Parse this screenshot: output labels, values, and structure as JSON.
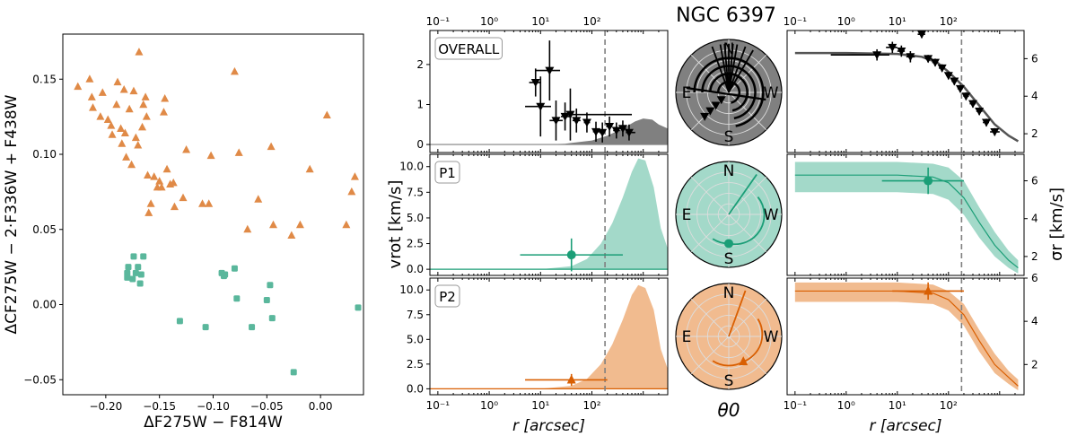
{
  "title": "NGC 6397",
  "colors": {
    "p1": "#1b9e77",
    "p2": "#d95f02",
    "p1_fill": "#a3d9c9",
    "p2_fill": "#f1bb8f",
    "overall": "#000000",
    "overall_fill": "#808080",
    "p1_marker": "#5ab79c",
    "p2_marker": "#e08a47",
    "vline": "#808080"
  },
  "chart_data": [
    {
      "id": "chromosome-map",
      "type": "scatter",
      "xlabel": "ΔF275W − F814W",
      "ylabel": "ΔCF275W − 2·F336W + F438W",
      "xlim": [
        -0.24,
        0.04
      ],
      "ylim": [
        -0.06,
        0.18
      ],
      "xticks": [
        -0.2,
        -0.15,
        -0.1,
        -0.05,
        0.0
      ],
      "xticklabels": [
        "−0.20",
        "−0.15",
        "−0.10",
        "−0.05",
        "0.00"
      ],
      "yticks": [
        -0.05,
        0.0,
        0.05,
        0.1,
        0.15
      ],
      "yticklabels": [
        "−0.05",
        "0.00",
        "0.05",
        "0.10",
        "0.15"
      ],
      "series": [
        {
          "name": "P2",
          "marker": "triangle",
          "points": [
            [
              -0.226,
              0.145
            ],
            [
              -0.215,
              0.15
            ],
            [
              -0.213,
              0.138
            ],
            [
              -0.212,
              0.131
            ],
            [
              -0.205,
              0.125
            ],
            [
              -0.203,
              0.141
            ],
            [
              -0.198,
              0.123
            ],
            [
              -0.195,
              0.119
            ],
            [
              -0.194,
              0.113
            ],
            [
              -0.19,
              0.133
            ],
            [
              -0.189,
              0.148
            ],
            [
              -0.186,
              0.117
            ],
            [
              -0.185,
              0.107
            ],
            [
              -0.183,
              0.143
            ],
            [
              -0.182,
              0.114
            ],
            [
              -0.181,
              0.098
            ],
            [
              -0.178,
              0.13
            ],
            [
              -0.176,
              0.093
            ],
            [
              -0.174,
              0.142
            ],
            [
              -0.172,
              0.111
            ],
            [
              -0.17,
              0.106
            ],
            [
              -0.169,
              0.168
            ],
            [
              -0.166,
              0.118
            ],
            [
              -0.165,
              0.133
            ],
            [
              -0.163,
              0.138
            ],
            [
              -0.162,
              0.125
            ],
            [
              -0.161,
              0.086
            ],
            [
              -0.16,
              0.061
            ],
            [
              -0.158,
              0.067
            ],
            [
              -0.155,
              0.085
            ],
            [
              -0.152,
              0.078
            ],
            [
              -0.15,
              0.082
            ],
            [
              -0.148,
              0.078
            ],
            [
              -0.146,
              0.128
            ],
            [
              -0.145,
              0.137
            ],
            [
              -0.143,
              0.09
            ],
            [
              -0.14,
              0.08
            ],
            [
              -0.137,
              0.081
            ],
            [
              -0.136,
              0.065
            ],
            [
              -0.128,
              0.071
            ],
            [
              -0.125,
              0.103
            ],
            [
              -0.11,
              0.067
            ],
            [
              -0.104,
              0.067
            ],
            [
              -0.102,
              0.099
            ],
            [
              -0.08,
              0.155
            ],
            [
              -0.076,
              0.101
            ],
            [
              -0.068,
              0.05
            ],
            [
              -0.058,
              0.07
            ],
            [
              -0.046,
              0.105
            ],
            [
              -0.044,
              0.053
            ],
            [
              -0.027,
              0.046
            ],
            [
              -0.019,
              0.053
            ],
            [
              -0.01,
              0.09
            ],
            [
              0.006,
              0.126
            ],
            [
              0.024,
              0.053
            ],
            [
              0.029,
              0.075
            ],
            [
              0.032,
              0.085
            ]
          ]
        },
        {
          "name": "P1",
          "marker": "square",
          "points": [
            [
              -0.18,
              0.021
            ],
            [
              -0.18,
              0.018
            ],
            [
              -0.179,
              0.025
            ],
            [
              -0.175,
              0.017
            ],
            [
              -0.174,
              0.032
            ],
            [
              -0.172,
              0.021
            ],
            [
              -0.17,
              0.025
            ],
            [
              -0.168,
              0.014
            ],
            [
              -0.167,
              0.02
            ],
            [
              -0.165,
              0.032
            ],
            [
              -0.131,
              -0.011
            ],
            [
              -0.107,
              -0.015
            ],
            [
              -0.092,
              0.021
            ],
            [
              -0.09,
              0.019
            ],
            [
              -0.089,
              0.02
            ],
            [
              -0.08,
              0.024
            ],
            [
              -0.078,
              0.004
            ],
            [
              -0.064,
              -0.015
            ],
            [
              -0.05,
              0.003
            ],
            [
              -0.047,
              0.013
            ],
            [
              -0.045,
              -0.009
            ],
            [
              -0.025,
              -0.045
            ],
            [
              0.035,
              -0.002
            ]
          ]
        }
      ]
    },
    {
      "id": "vrot-overall",
      "type": "line",
      "label": "OVERALL",
      "xscale": "log",
      "xlim": [
        0.07,
        3000
      ],
      "ylim": [
        -0.2,
        2.85
      ],
      "yticks": [
        0,
        1,
        2
      ],
      "yticklabels": [
        "0",
        "1",
        "2"
      ],
      "xticklabels_top": [
        "10⁻¹",
        "10⁰",
        "10¹",
        "10²"
      ],
      "vline": 180,
      "model_curve": {
        "x": [
          0.07,
          10,
          30,
          100,
          200,
          400,
          700,
          1000,
          1500,
          2000,
          3000
        ],
        "y": [
          0.0,
          0.0,
          0.02,
          0.1,
          0.22,
          0.4,
          0.58,
          0.65,
          0.62,
          0.5,
          0.4
        ]
      },
      "points": [
        {
          "x": 38,
          "y": 0.75,
          "xerr": [
            35,
            600
          ],
          "yerr": 0.65
        },
        {
          "x": 15,
          "y": 1.85,
          "xerr": [
            8,
            24
          ],
          "yerr": 0.75
        },
        {
          "x": 10,
          "y": 0.95,
          "xerr": [
            5,
            16
          ],
          "yerr": 0.75
        },
        {
          "x": 20,
          "y": 0.6,
          "xerr": [
            15,
            27
          ],
          "yerr": 0.5
        },
        {
          "x": 8,
          "y": 1.55,
          "xerr": [
            6,
            10
          ],
          "yerr": 0.35
        },
        {
          "x": 30,
          "y": 0.7,
          "xerr": [
            25,
            40
          ],
          "yerr": 0.35
        },
        {
          "x": 50,
          "y": 0.6,
          "xerr": [
            42,
            60
          ],
          "yerr": 0.3
        },
        {
          "x": 80,
          "y": 0.55,
          "xerr": [
            70,
            92
          ],
          "yerr": 0.25
        },
        {
          "x": 120,
          "y": 0.32,
          "xerr": [
            105,
            140
          ],
          "yerr": 0.25
        },
        {
          "x": 160,
          "y": 0.3,
          "xerr": [
            140,
            180
          ],
          "yerr": 0.25
        },
        {
          "x": 220,
          "y": 0.45,
          "xerr": [
            190,
            250
          ],
          "yerr": 0.25
        },
        {
          "x": 300,
          "y": 0.35,
          "xerr": [
            260,
            350
          ],
          "yerr": 0.2
        },
        {
          "x": 400,
          "y": 0.4,
          "xerr": [
            350,
            460
          ],
          "yerr": 0.2
        },
        {
          "x": 530,
          "y": 0.3,
          "xerr": [
            460,
            700
          ],
          "yerr": 0.2
        }
      ]
    },
    {
      "id": "vrot-p1",
      "type": "line",
      "label": "P1",
      "xscale": "log",
      "xlim": [
        0.07,
        3000
      ],
      "ylim": [
        -0.6,
        11.2
      ],
      "yticks": [
        0,
        2.5,
        5,
        7.5,
        10
      ],
      "yticklabels": [
        "0.0",
        "2.5",
        "5.0",
        "7.5",
        "10.0"
      ],
      "vline": 180,
      "model_curve": {
        "x": [
          0.07,
          10,
          40,
          80,
          150,
          250,
          400,
          600,
          800,
          1100,
          1600,
          2200,
          3000
        ],
        "y": [
          0.0,
          0.0,
          0.3,
          1.0,
          2.5,
          4.5,
          7.0,
          9.5,
          10.8,
          10.6,
          8.0,
          4.0,
          2.0
        ]
      },
      "points": [
        {
          "x": 40,
          "y": 1.4,
          "xerr": [
            4,
            400
          ],
          "yerr": 1.6
        }
      ]
    },
    {
      "id": "vrot-p2",
      "type": "line",
      "label": "P2",
      "xscale": "log",
      "xlim": [
        0.07,
        3000
      ],
      "ylim": [
        -0.6,
        11.2
      ],
      "yticks": [
        0,
        2.5,
        5,
        7.5,
        10
      ],
      "yticklabels": [
        "0.0",
        "2.5",
        "5.0",
        "7.5",
        "10.0"
      ],
      "xticklabels": [
        "10⁻¹",
        "10⁰",
        "10¹",
        "10²"
      ],
      "xlabel": "r [arcsec]",
      "vline": 180,
      "model_curve": {
        "x": [
          0.07,
          10,
          40,
          80,
          150,
          250,
          400,
          600,
          800,
          1100,
          1600,
          2200,
          3000
        ],
        "y": [
          0.0,
          0.0,
          0.3,
          1.0,
          2.5,
          4.5,
          7.0,
          9.5,
          10.5,
          10.2,
          8.0,
          4.0,
          2.0
        ]
      },
      "points": [
        {
          "x": 40,
          "y": 0.9,
          "xerr": [
            5,
            200
          ],
          "yerr": 0.6
        }
      ]
    },
    {
      "id": "polar-overall",
      "type": "polar",
      "label": "OVERALL",
      "compass": [
        "N",
        "E",
        "W",
        "S"
      ],
      "theta0_deg": [
        180,
        210,
        160,
        200,
        170,
        190,
        175,
        185
      ],
      "rings": [
        0.18,
        0.35,
        0.5,
        0.65,
        0.8
      ]
    },
    {
      "id": "polar-p1",
      "type": "polar",
      "label": "P1",
      "compass": [
        "N",
        "E",
        "W",
        "S"
      ],
      "theta0_deg": [
        -145
      ],
      "arc_deg": [
        -10,
        -90
      ],
      "marker_radius": 0.55
    },
    {
      "id": "polar-p2",
      "type": "polar",
      "label": "P2",
      "compass": [
        "N",
        "E",
        "W",
        "S"
      ],
      "theta0_deg": [
        -160
      ],
      "arc_deg": [
        -10,
        -60
      ],
      "marker_radius": 0.55
    },
    {
      "id": "sigma-overall",
      "type": "line",
      "xscale": "log",
      "xlim": [
        0.07,
        3000
      ],
      "ylim": [
        1.0,
        7.5
      ],
      "yticks": [
        2,
        4,
        6
      ],
      "yticklabels": [
        "2",
        "4",
        "6"
      ],
      "xticklabels_top": [
        "10⁻¹",
        "10⁰",
        "10¹",
        "10²"
      ],
      "vline": 180,
      "model_curve": {
        "x": [
          0.1,
          1,
          10,
          30,
          60,
          100,
          200,
          400,
          800,
          1500,
          2300
        ],
        "y": [
          6.3,
          6.3,
          6.25,
          6.1,
          5.8,
          5.3,
          4.5,
          3.5,
          2.5,
          1.9,
          1.6
        ]
      },
      "points": [
        {
          "x": 4,
          "y": 6.2,
          "xerr": [
            0.5,
            7
          ],
          "yerr": 0.3
        },
        {
          "x": 8,
          "y": 6.6,
          "xerr": [
            6,
            10
          ],
          "yerr": 0.3
        },
        {
          "x": 12,
          "y": 6.4,
          "xerr": [
            10,
            14
          ],
          "yerr": 0.3
        },
        {
          "x": 18,
          "y": 6.1,
          "xerr": [
            15,
            22
          ],
          "yerr": 0.3
        },
        {
          "x": 30,
          "y": 7.3,
          "xerr": [
            25,
            35
          ],
          "yerr": 0.2
        },
        {
          "x": 40,
          "y": 6.0,
          "xerr": [
            35,
            48
          ],
          "yerr": 0.2
        },
        {
          "x": 55,
          "y": 5.8,
          "xerr": [
            48,
            62
          ],
          "yerr": 0.2
        },
        {
          "x": 75,
          "y": 5.5,
          "xerr": [
            65,
            85
          ],
          "yerr": 0.2
        },
        {
          "x": 100,
          "y": 5.1,
          "xerr": [
            90,
            115
          ],
          "yerr": 0.2
        },
        {
          "x": 130,
          "y": 4.8,
          "xerr": [
            115,
            145
          ],
          "yerr": 0.2
        },
        {
          "x": 170,
          "y": 4.4,
          "xerr": [
            150,
            190
          ],
          "yerr": 0.2
        },
        {
          "x": 220,
          "y": 4.0,
          "xerr": [
            195,
            250
          ],
          "yerr": 0.2
        },
        {
          "x": 300,
          "y": 3.6,
          "xerr": [
            260,
            340
          ],
          "yerr": 0.2
        },
        {
          "x": 400,
          "y": 3.2,
          "xerr": [
            350,
            460
          ],
          "yerr": 0.2
        },
        {
          "x": 550,
          "y": 2.6,
          "xerr": [
            470,
            620
          ],
          "yerr": 0.2
        },
        {
          "x": 800,
          "y": 2.1,
          "xerr": [
            650,
            1000
          ],
          "yerr": 0.2
        }
      ]
    },
    {
      "id": "sigma-p1",
      "type": "line",
      "ylabel": "σr [km/s]",
      "xscale": "log",
      "xlim": [
        0.07,
        3000
      ],
      "ylim": [
        1.0,
        7.4
      ],
      "yticks": [
        2,
        4,
        6
      ],
      "yticklabels": [
        "2",
        "4",
        "6"
      ],
      "vline": 180,
      "band": {
        "x": [
          0.1,
          1,
          10,
          50,
          100,
          200,
          400,
          800,
          1500,
          2300
        ],
        "lo": [
          5.4,
          5.4,
          5.4,
          5.3,
          5.0,
          4.2,
          3.0,
          2.0,
          1.4,
          1.1
        ],
        "hi": [
          7.0,
          7.0,
          7.0,
          6.9,
          6.7,
          6.0,
          4.6,
          3.3,
          2.3,
          1.8
        ],
        "mid": [
          6.3,
          6.3,
          6.3,
          6.2,
          5.9,
          5.1,
          3.8,
          2.6,
          1.8,
          1.4
        ]
      },
      "points": [
        {
          "x": 40,
          "y": 6.0,
          "xerr": [
            5,
            200
          ],
          "yerr": 0.7
        }
      ]
    },
    {
      "id": "sigma-p2",
      "type": "line",
      "xscale": "log",
      "xlim": [
        0.07,
        3000
      ],
      "ylim": [
        0.6,
        6.0
      ],
      "yticks": [
        2,
        4
      ],
      "yticklabels": [
        "2",
        "4"
      ],
      "yticks_extra": [
        6
      ],
      "xticklabels": [
        "10⁻¹",
        "10⁰",
        "10¹",
        "10²"
      ],
      "xlabel": "r [arcsec]",
      "vline": 180,
      "band": {
        "x": [
          0.1,
          1,
          10,
          50,
          100,
          200,
          400,
          800,
          1500,
          2300
        ],
        "lo": [
          4.9,
          4.9,
          4.9,
          4.8,
          4.5,
          3.8,
          2.6,
          1.6,
          1.1,
          0.8
        ],
        "hi": [
          5.8,
          5.8,
          5.8,
          5.7,
          5.4,
          4.8,
          3.6,
          2.5,
          1.7,
          1.3
        ],
        "mid": [
          5.4,
          5.4,
          5.4,
          5.3,
          5.0,
          4.3,
          3.1,
          2.0,
          1.4,
          1.0
        ]
      },
      "points": [
        {
          "x": 40,
          "y": 5.4,
          "xerr": [
            8,
            200
          ],
          "yerr": 0.4
        }
      ]
    }
  ],
  "labels": {
    "vrot_ylabel": "vrot [km/s]",
    "sigma_ylabel": "σr [km/s]",
    "xlabel_r": "r [arcsec]",
    "theta_label": "θ0",
    "yticklabels_sigma_p2": [
      "2",
      "4",
      "6"
    ]
  }
}
